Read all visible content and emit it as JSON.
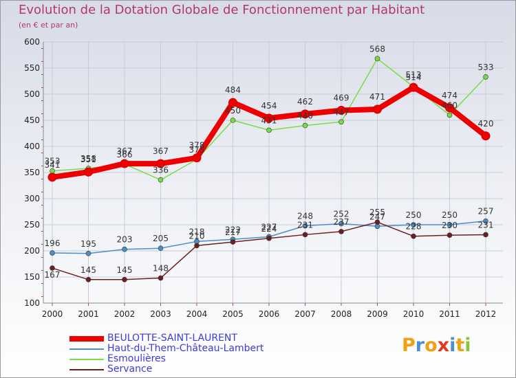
{
  "chart_data": {
    "type": "line",
    "title": "Evolution de la Dotation Globale de Fonctionnement par Habitant",
    "subtitle": "(en € et par an)",
    "x": [
      "2000",
      "2001",
      "2002",
      "2003",
      "2004",
      "2005",
      "2006",
      "2007",
      "2008",
      "2009",
      "2010",
      "2011",
      "2012"
    ],
    "ylim": [
      100,
      600
    ],
    "yticks": [
      100,
      150,
      200,
      250,
      300,
      350,
      400,
      450,
      500,
      550,
      600
    ],
    "xlabel": "",
    "ylabel": "",
    "series": [
      {
        "name": "BEULOTTE-SAINT-LAURENT",
        "color": "#ee0000",
        "values": [
          341,
          351,
          367,
          367,
          378,
          484,
          454,
          462,
          469,
          471,
          513,
          474,
          420
        ]
      },
      {
        "name": "Haut-du-Them-Château-Lambert",
        "color": "#4a8ec9",
        "values": [
          196,
          195,
          203,
          205,
          218,
          222,
          227,
          248,
          252,
          247,
          250,
          250,
          257
        ]
      },
      {
        "name": "Esmoulières",
        "color": "#77dd44",
        "values": [
          353,
          358,
          366,
          336,
          375,
          450,
          431,
          440,
          447,
          568,
          514,
          460,
          533
        ]
      },
      {
        "name": "Servance",
        "color": "#6b1f1f",
        "values": [
          167,
          145,
          145,
          148,
          210,
          217,
          224,
          231,
          237,
          255,
          228,
          230,
          231
        ]
      }
    ]
  },
  "legend": {
    "label_colors": [
      "#3b3bdd",
      "#3b3bdd",
      "#3b3bdd",
      "#3b3bdd"
    ]
  },
  "logo": {
    "letters": [
      "P",
      "r",
      "o",
      "x",
      "i",
      "t",
      "i"
    ],
    "colors": [
      "#f0a010",
      "#4a90d0",
      "#f0a010",
      "#e03a20",
      "#4a90d0",
      "#f0a010",
      "#8ac43a"
    ]
  }
}
